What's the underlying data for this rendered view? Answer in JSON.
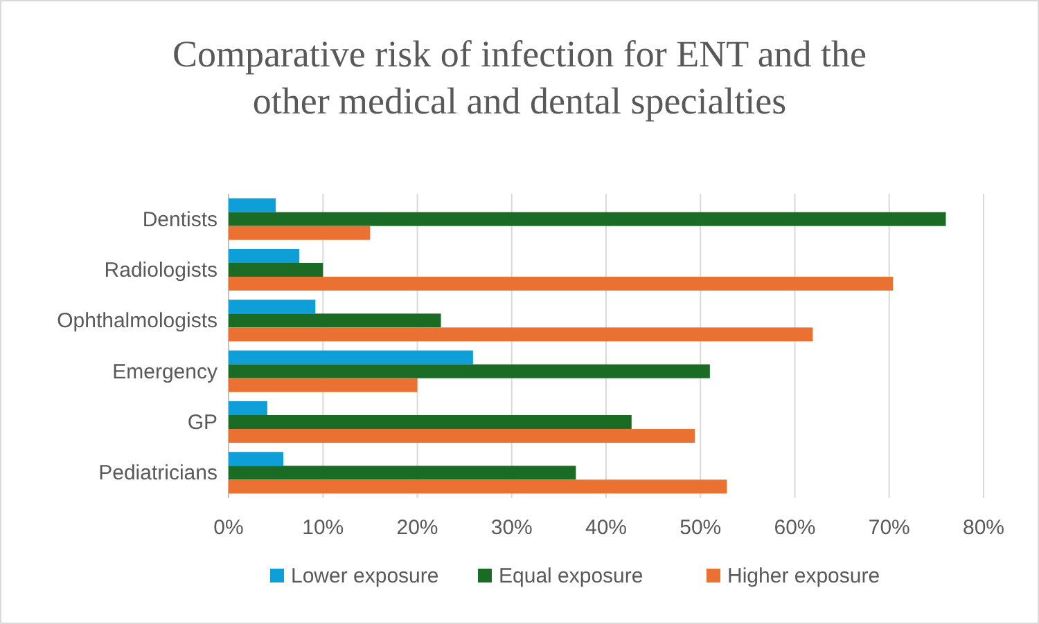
{
  "chart_data": {
    "type": "bar",
    "orientation": "horizontal",
    "title": "Comparative risk of infection for ENT and the other medical and dental specialties",
    "categories": [
      "Dentists",
      "Radiologists",
      "Ophthalmologists",
      "Emergency",
      "GP",
      "Pediatricians"
    ],
    "series": [
      {
        "name": "Lower exposure",
        "color": "#0e9fd8",
        "values": [
          5,
          7.5,
          9.2,
          25.9,
          4.1,
          5.8
        ]
      },
      {
        "name": "Equal exposure",
        "color": "#1a6b23",
        "values": [
          76,
          10,
          22.5,
          51,
          42.7,
          36.8
        ]
      },
      {
        "name": "Higher exposure",
        "color": "#ea7132",
        "values": [
          15,
          70.4,
          61.9,
          20,
          49.4,
          52.8
        ]
      }
    ],
    "xlim": [
      0,
      80
    ],
    "xticks": [
      {
        "value": 0,
        "label": "0%"
      },
      {
        "value": 10,
        "label": "10%"
      },
      {
        "value": 20,
        "label": "20%"
      },
      {
        "value": 30,
        "label": "30%"
      },
      {
        "value": 40,
        "label": "40%"
      },
      {
        "value": 50,
        "label": "50%"
      },
      {
        "value": 60,
        "label": "60%"
      },
      {
        "value": 70,
        "label": "70%"
      },
      {
        "value": 80,
        "label": "80%"
      }
    ],
    "grid": "x",
    "legend": "bottom"
  }
}
